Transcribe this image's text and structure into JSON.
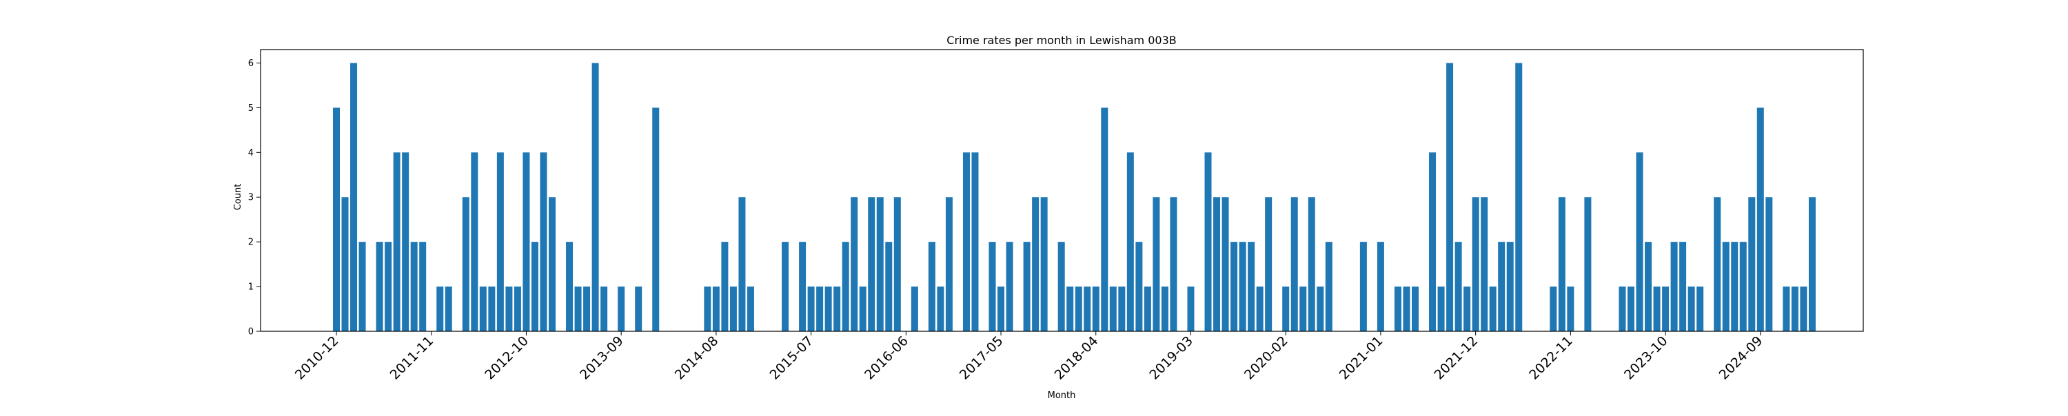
{
  "chart_data": {
    "type": "bar",
    "title": "Crime rates per month in Lewisham 003B",
    "xlabel": "Month",
    "ylabel": "Count",
    "ylim": [
      0,
      6.3
    ],
    "yticks": [
      0,
      1,
      2,
      3,
      4,
      5,
      6
    ],
    "xticks": [
      "2010-12",
      "2011-11",
      "2012-10",
      "2013-09",
      "2014-08",
      "2015-07",
      "2016-06",
      "2017-05",
      "2018-04",
      "2019-03",
      "2020-02",
      "2021-01",
      "2021-12",
      "2022-11",
      "2023-10",
      "2024-09"
    ],
    "start_month": "2010-12",
    "grid": false,
    "bar_color": "#1f77b4",
    "series": [
      {
        "values": [
          5,
          3,
          6,
          2,
          null,
          2,
          2,
          4,
          4,
          2,
          2,
          null,
          1,
          1,
          null,
          3,
          4,
          1,
          1,
          4,
          1,
          1,
          4,
          2,
          4,
          3,
          null,
          2,
          1,
          1,
          6,
          1,
          null,
          1,
          null,
          1,
          null,
          5,
          null,
          null,
          null,
          null,
          null,
          1,
          1,
          2,
          1,
          3,
          1,
          null,
          null,
          null,
          2,
          null,
          2,
          1,
          1,
          1,
          1,
          2,
          3,
          1,
          3,
          3,
          2,
          3,
          null,
          1,
          null,
          2,
          1,
          3,
          null,
          4,
          4,
          null,
          2,
          1,
          2,
          null,
          2,
          3,
          3,
          null,
          2,
          1,
          1,
          1,
          1,
          5,
          1,
          1,
          4,
          2,
          1,
          3,
          1,
          3,
          null,
          1,
          null,
          4,
          3,
          3,
          2,
          2,
          2,
          1,
          3,
          null,
          1,
          3,
          1,
          3,
          1,
          2,
          null,
          null,
          null,
          2,
          null,
          2,
          null,
          1,
          1,
          1,
          null,
          4,
          1,
          6,
          2,
          1,
          3,
          3,
          1,
          2,
          2,
          6,
          null,
          null,
          null,
          1,
          3,
          1,
          null,
          3,
          null,
          null,
          null,
          1,
          1,
          4,
          2,
          1,
          1,
          2,
          2,
          1,
          1,
          null,
          3,
          2,
          2,
          2,
          3,
          5,
          3,
          null,
          1,
          1,
          1,
          3
        ]
      }
    ]
  }
}
